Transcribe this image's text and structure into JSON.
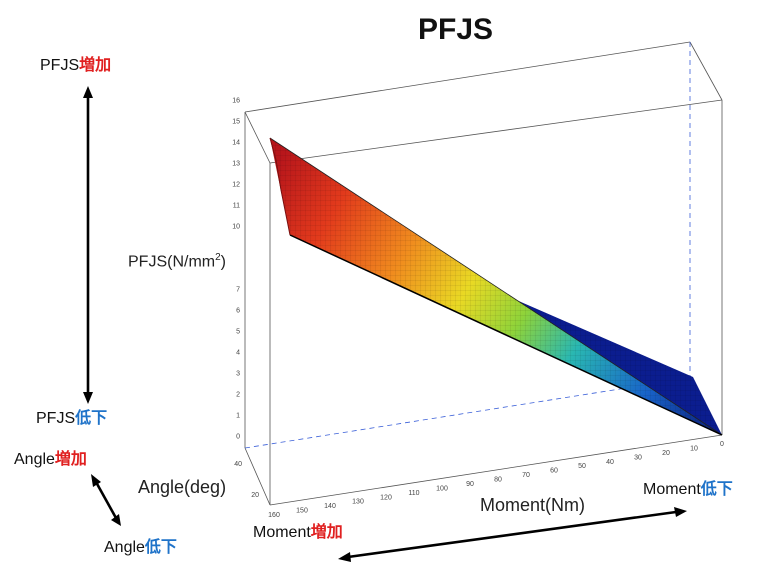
{
  "chart_data": {
    "type": "surface3d",
    "title": "PFJS",
    "zlabel_prefix": "PFJS(N/mm",
    "zlabel_sup": "2",
    "zlabel_suffix": ")",
    "xlabel": "Moment(Nm)",
    "ylabel": "Angle(deg)",
    "z_ticks": [
      "16",
      "15",
      "14",
      "13",
      "12",
      "11",
      "10",
      "7",
      "6",
      "5",
      "4",
      "3",
      "2",
      "1",
      "0"
    ],
    "x_ticks": [
      "160",
      "150",
      "140",
      "130",
      "120",
      "110",
      "100",
      "90",
      "80",
      "70",
      "60",
      "50",
      "40",
      "30",
      "20",
      "10",
      "0"
    ],
    "y_ticks": [
      "40",
      "20"
    ],
    "xlim": [
      0,
      160
    ],
    "ylim": [
      20,
      40
    ],
    "zlim": [
      0,
      16
    ],
    "surface_corners": {
      "moment_160_angle_40": 14,
      "moment_160_angle_20": 9.5,
      "moment_0_angle_40": 0.5,
      "moment_0_angle_20": 0
    },
    "colormap": "jet"
  },
  "annotations": {
    "pfjs_label": "PFJS",
    "increase_kanji": "増加",
    "decrease_kanji": "低下",
    "angle_label": "Angle",
    "moment_label": "Moment"
  }
}
